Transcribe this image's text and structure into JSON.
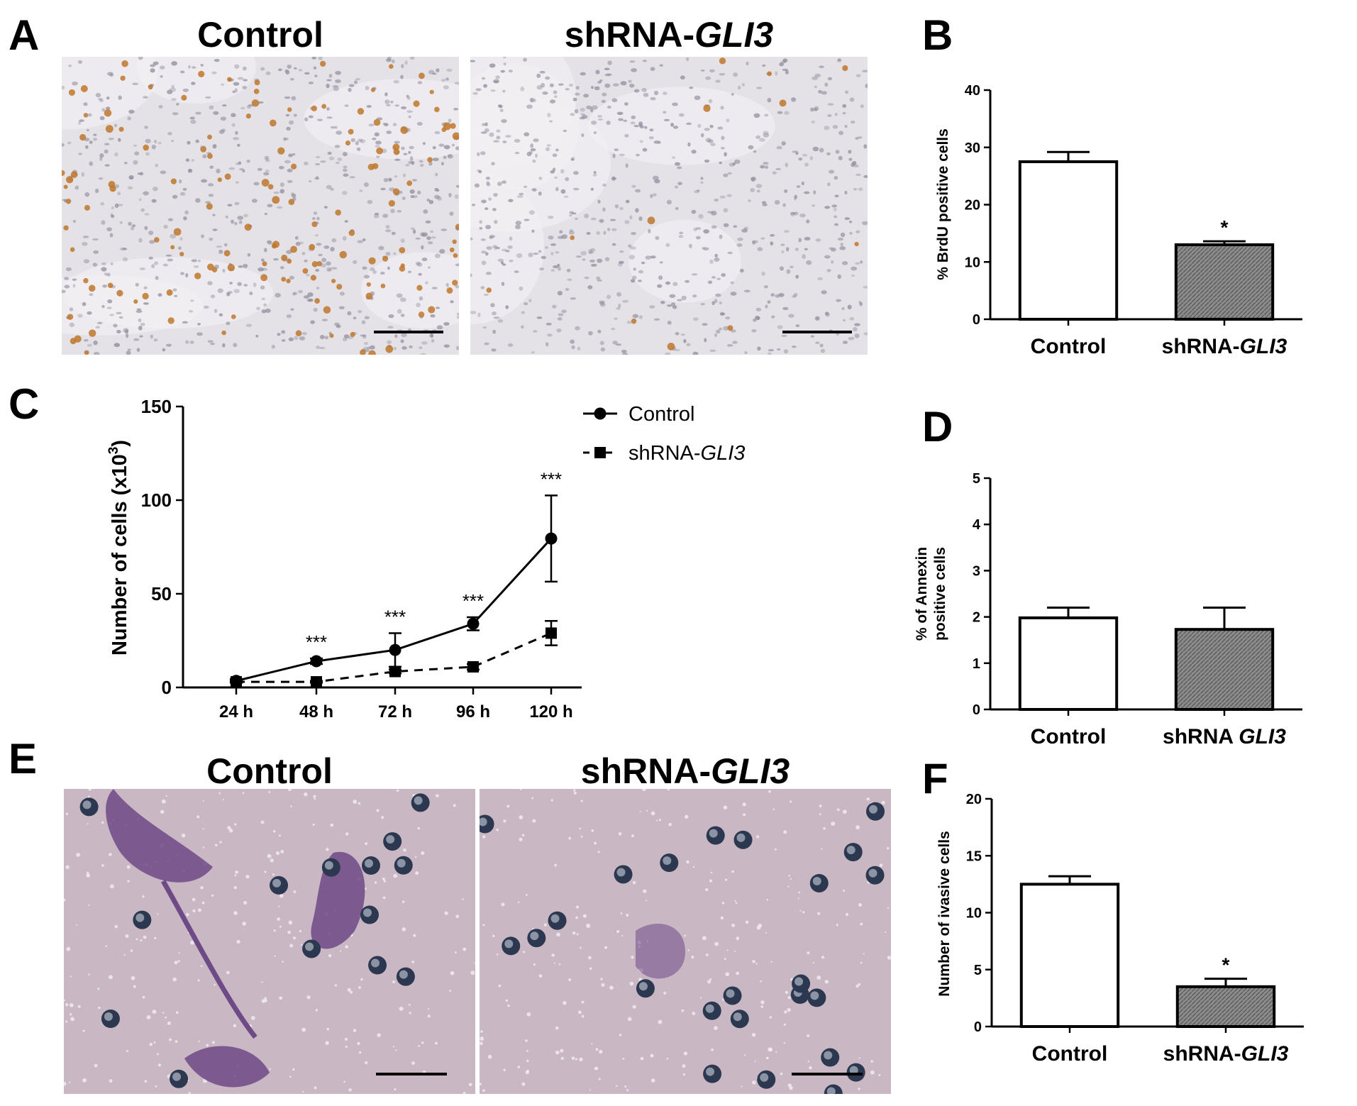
{
  "panels": {
    "A": {
      "letter": "A",
      "left_title": "Control",
      "right_title_prefix": "shRNA-",
      "right_title_italic": "GLI3"
    },
    "E": {
      "letter": "E",
      "left_title": "Control",
      "right_title_prefix": "shRNA-",
      "right_title_italic": "GLI3"
    },
    "B": {
      "letter": "B"
    },
    "C": {
      "letter": "C"
    },
    "D": {
      "letter": "D"
    },
    "F": {
      "letter": "F"
    }
  },
  "colors": {
    "brightfield_bg": "#e4e2e6",
    "brdu_positive": "#c0772a",
    "nucleus": "#8d8b9c",
    "violet_bg": "#c9b7c4",
    "cell_stain": "#6e4a86",
    "bead_dark": "#2c3850",
    "hatch_fill": "#8c8c8c"
  },
  "chart_data": [
    {
      "id": "B",
      "type": "bar",
      "ylabel": "% BrdU positive cells",
      "ylim": [
        0,
        40
      ],
      "yticks": [
        0,
        10,
        20,
        30,
        40
      ],
      "categories": [
        "Control",
        "shRNA-GLI3"
      ],
      "category_prefix": [
        "Control",
        "shRNA-"
      ],
      "category_italic": [
        "",
        "GLI3"
      ],
      "values": [
        27.5,
        13.0
      ],
      "errors": [
        1.7,
        0.6
      ],
      "fills": [
        "white",
        "hatch"
      ],
      "annotations": [
        "",
        "*"
      ]
    },
    {
      "id": "C",
      "type": "line",
      "ylabel": "Number of cells (x10",
      "ylabel_sup": "3",
      "ylabel_end": ")",
      "ylim": [
        0,
        150
      ],
      "yticks": [
        0,
        50,
        100,
        150
      ],
      "x": [
        "24 h",
        "48 h",
        "72 h",
        "96 h",
        "120 h"
      ],
      "series": [
        {
          "name": "Control",
          "values": [
            3.5,
            14,
            20,
            34,
            79.5
          ],
          "errors": [
            1.0,
            1.5,
            9,
            3.5,
            23
          ],
          "marker": "circle",
          "dash": "solid"
        },
        {
          "name_prefix": "shRNA-",
          "name_italic": "GLI3",
          "values": [
            3,
            3,
            8.5,
            11,
            29
          ],
          "errors": [
            0.5,
            0.5,
            1.0,
            1.5,
            6.5
          ],
          "marker": "square",
          "dash": "dashed"
        }
      ],
      "annotations": [
        "",
        "***",
        "***",
        "***",
        "***"
      ]
    },
    {
      "id": "D",
      "type": "bar",
      "ylabel_line1": "% of Annexin",
      "ylabel_line2": "positive cells",
      "ylim": [
        0,
        5
      ],
      "yticks": [
        0,
        1,
        2,
        3,
        4,
        5
      ],
      "categories": [
        "Control",
        "shRNA GLI3"
      ],
      "category_prefix": [
        "Control",
        "shRNA "
      ],
      "category_italic": [
        "",
        "GLI3"
      ],
      "values": [
        1.98,
        1.73
      ],
      "errors": [
        0.22,
        0.47
      ],
      "fills": [
        "white",
        "hatch"
      ],
      "annotations": [
        "",
        ""
      ]
    },
    {
      "id": "F",
      "type": "bar",
      "ylabel": "Number of ivasive cells",
      "ylim": [
        0,
        20
      ],
      "yticks": [
        0,
        5,
        10,
        15,
        20
      ],
      "categories": [
        "Control",
        "shRNA-GLI3"
      ],
      "category_prefix": [
        "Control",
        "shRNA-"
      ],
      "category_italic": [
        "",
        "GLI3"
      ],
      "values": [
        12.5,
        3.5
      ],
      "errors": [
        0.7,
        0.7
      ],
      "fills": [
        "white",
        "hatch"
      ],
      "annotations": [
        "",
        "*"
      ]
    }
  ]
}
